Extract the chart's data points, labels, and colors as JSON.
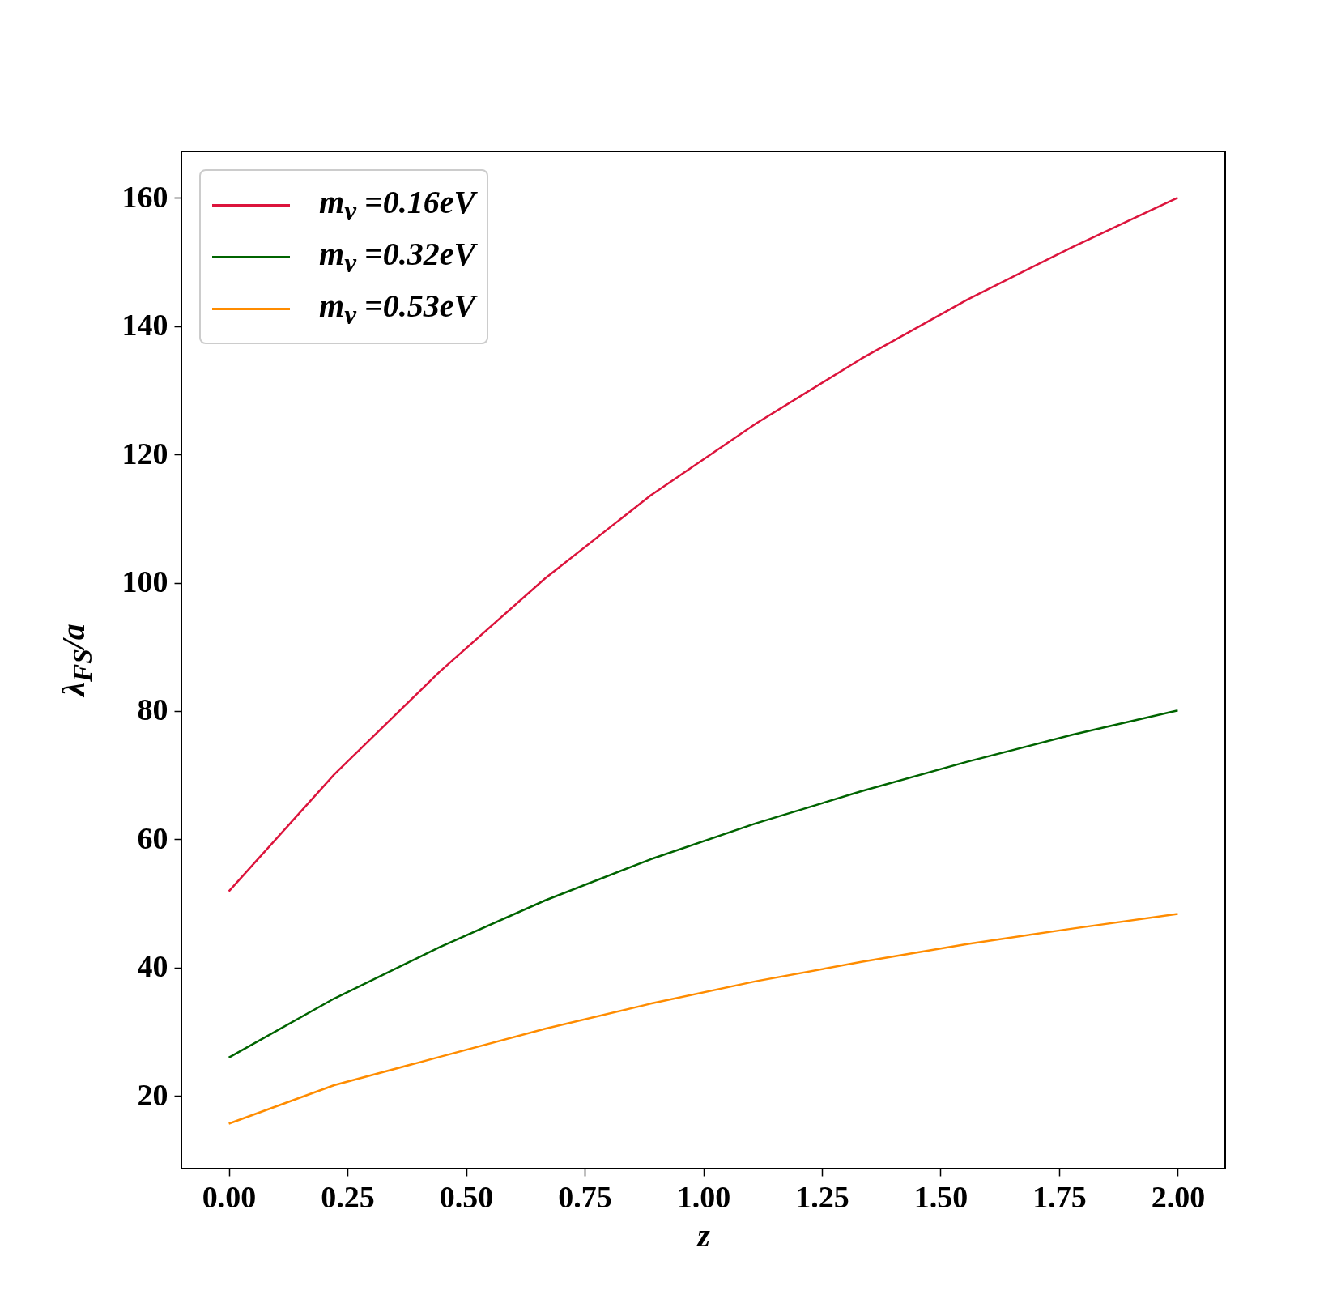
{
  "chart_data": {
    "type": "line",
    "xlabel": "z",
    "ylabel": "λ$_{FS}$/a",
    "x": [
      0,
      0.222,
      0.444,
      0.667,
      0.889,
      1.111,
      1.333,
      1.556,
      1.778,
      2.0
    ],
    "series": [
      {
        "name": "m$_{ν}$ =0.16eV",
        "color": "#dc143c",
        "values": [
          51.9,
          70.1,
          86.1,
          100.7,
          113.6,
          124.8,
          134.9,
          144.1,
          152.3,
          160.0
        ]
      },
      {
        "name": "m$_{ν}$ =0.32eV",
        "color": "#006400",
        "values": [
          26.0,
          35.2,
          43.2,
          50.5,
          56.9,
          62.5,
          67.5,
          72.1,
          76.3,
          80.1
        ]
      },
      {
        "name": "m$_{ν}$ =0.53eV",
        "color": "#ff8c00",
        "values": [
          15.7,
          21.7,
          26.1,
          30.5,
          34.4,
          37.9,
          40.9,
          43.7,
          46.1,
          48.4
        ]
      }
    ],
    "xlim": [
      -0.1,
      2.1
    ],
    "xticks": [
      {
        "value": 0,
        "label": "0.00"
      },
      {
        "value": 0.25,
        "label": "0.25"
      },
      {
        "value": 0.5,
        "label": "0.50"
      },
      {
        "value": 0.75,
        "label": "0.75"
      },
      {
        "value": 1,
        "label": "1.00"
      },
      {
        "value": 1.25,
        "label": "1.25"
      },
      {
        "value": 1.5,
        "label": "1.50"
      },
      {
        "value": 1.75,
        "label": "1.75"
      },
      {
        "value": 2,
        "label": "2.00"
      }
    ],
    "ylim": [
      8.7,
      167.2
    ],
    "yticks": [
      20,
      40,
      60,
      80,
      100,
      120,
      140,
      160
    ],
    "grid": false,
    "legend": "top left",
    "line_style": "solid"
  }
}
